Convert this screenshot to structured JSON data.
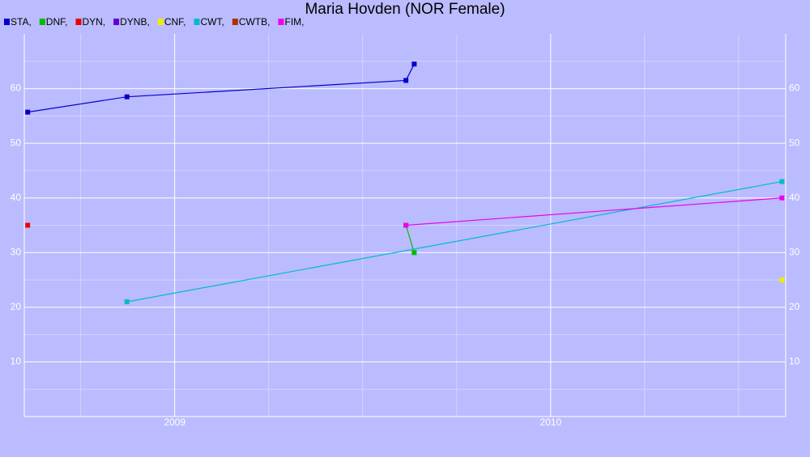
{
  "chart_data": {
    "type": "line",
    "title": "Maria Hovden (NOR Female)",
    "xlim": [
      2008.6,
      2010.625
    ],
    "xticks": [
      2009,
      2010
    ],
    "ylim": [
      0,
      70
    ],
    "yticks": [
      10,
      20,
      30,
      40,
      50,
      60
    ],
    "grid": true,
    "series": [
      {
        "name": "STA,",
        "color": "#0000cc",
        "x": [
          2008.609,
          2008.873,
          2009.615,
          2009.637
        ],
        "values": [
          55.7,
          58.5,
          61.5,
          64.5
        ]
      },
      {
        "name": "DNF,",
        "color": "#00bb00",
        "x": [
          2009.615,
          2009.637
        ],
        "values": [
          35,
          30
        ]
      },
      {
        "name": "DYN,",
        "color": "#ee0000",
        "x": [
          2008.609
        ],
        "values": [
          35
        ]
      },
      {
        "name": "DYNB,",
        "color": "#6600cc",
        "x": [],
        "values": []
      },
      {
        "name": "CNF,",
        "color": "#eeee00",
        "x": [
          2010.615
        ],
        "values": [
          25
        ]
      },
      {
        "name": "CWT,",
        "color": "#00bbcc",
        "x": [
          2008.873,
          2010.615
        ],
        "values": [
          21,
          43
        ]
      },
      {
        "name": "CWTB,",
        "color": "#aa3300",
        "x": [],
        "values": []
      },
      {
        "name": "FIM,",
        "color": "#ee00ee",
        "x": [
          2009.615,
          2010.615
        ],
        "values": [
          35,
          40
        ]
      }
    ]
  }
}
